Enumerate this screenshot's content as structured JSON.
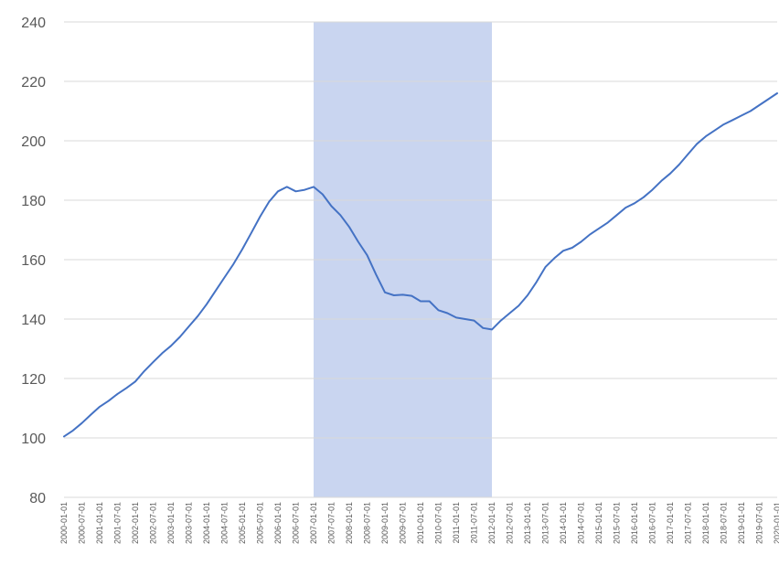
{
  "chart_data": {
    "type": "line",
    "title": "",
    "xlabel": "",
    "ylabel": "",
    "ylim": [
      80,
      240
    ],
    "y_ticks": [
      80,
      100,
      120,
      140,
      160,
      180,
      200,
      220,
      240
    ],
    "grid": true,
    "legend": "none",
    "colors": {
      "line": "#4472c4",
      "shade": "#c9d5f0",
      "grid": "#d9d9d9",
      "text": "#595959"
    },
    "x_tick_labels": [
      "2000-01-01",
      "2000-07-01",
      "2001-01-01",
      "2001-07-01",
      "2002-01-01",
      "2002-07-01",
      "2003-01-01",
      "2003-07-01",
      "2004-01-01",
      "2004-07-01",
      "2005-01-01",
      "2005-07-01",
      "2006-01-01",
      "2006-07-01",
      "2007-01-01",
      "2007-07-01",
      "2008-01-01",
      "2008-07-01",
      "2009-01-01",
      "2009-07-01",
      "2010-01-01",
      "2010-07-01",
      "2011-01-01",
      "2011-07-01",
      "2012-01-01",
      "2012-07-01",
      "2013-01-01",
      "2013-07-01",
      "2014-01-01",
      "2014-07-01",
      "2015-01-01",
      "2015-07-01",
      "2016-01-01",
      "2016-07-01",
      "2017-01-01",
      "2017-07-01",
      "2018-01-01",
      "2018-07-01",
      "2019-01-01",
      "2019-07-01",
      "2020-01-01"
    ],
    "shaded_region": {
      "start": "2007-01-01",
      "end": "2012-01-01"
    },
    "series": [
      {
        "x": [
          "2000-01-01",
          "2000-04-01",
          "2000-07-01",
          "2000-10-01",
          "2001-01-01",
          "2001-04-01",
          "2001-07-01",
          "2001-10-01",
          "2002-01-01",
          "2002-04-01",
          "2002-07-01",
          "2002-10-01",
          "2003-01-01",
          "2003-04-01",
          "2003-07-01",
          "2003-10-01",
          "2004-01-01",
          "2004-04-01",
          "2004-07-01",
          "2004-10-01",
          "2005-01-01",
          "2005-04-01",
          "2005-07-01",
          "2005-10-01",
          "2006-01-01",
          "2006-04-01",
          "2006-07-01",
          "2006-10-01",
          "2007-01-01",
          "2007-04-01",
          "2007-07-01",
          "2007-10-01",
          "2008-01-01",
          "2008-04-01",
          "2008-07-01",
          "2008-10-01",
          "2009-01-01",
          "2009-04-01",
          "2009-07-01",
          "2009-10-01",
          "2010-01-01",
          "2010-04-01",
          "2010-07-01",
          "2010-10-01",
          "2011-01-01",
          "2011-04-01",
          "2011-07-01",
          "2011-10-01",
          "2012-01-01",
          "2012-04-01",
          "2012-07-01",
          "2012-10-01",
          "2013-01-01",
          "2013-04-01",
          "2013-07-01",
          "2013-10-01",
          "2014-01-01",
          "2014-04-01",
          "2014-07-01",
          "2014-10-01",
          "2015-01-01",
          "2015-04-01",
          "2015-07-01",
          "2015-10-01",
          "2016-01-01",
          "2016-04-01",
          "2016-07-01",
          "2016-10-01",
          "2017-01-01",
          "2017-04-01",
          "2017-07-01",
          "2017-10-01",
          "2018-01-01",
          "2018-04-01",
          "2018-07-01",
          "2018-10-01",
          "2019-01-01",
          "2019-04-01",
          "2019-07-01",
          "2019-10-01",
          "2020-01-01"
        ],
        "values": [
          100.5,
          102.5,
          105,
          107.8,
          110.5,
          112.5,
          114.8,
          116.8,
          119,
          122.5,
          125.5,
          128.5,
          131,
          134,
          137.5,
          141,
          145,
          149.5,
          154,
          158.5,
          163.5,
          169,
          174.5,
          179.5,
          183,
          184.5,
          183,
          183.5,
          184.5,
          182,
          178,
          175,
          171,
          166,
          161.5,
          155,
          149,
          148,
          148.2,
          147.8,
          146,
          146,
          143,
          142,
          140.5,
          140,
          139.5,
          137,
          136.5,
          139.5,
          142,
          144.5,
          148,
          152.5,
          157.5,
          160.5,
          163,
          164,
          166,
          168.5,
          170.5,
          172.5,
          175,
          177.5,
          179,
          181,
          183.5,
          186.5,
          189,
          192,
          195.5,
          199,
          201.5,
          203.5,
          205.5,
          207,
          208.5,
          210,
          212,
          214,
          216
        ]
      }
    ]
  }
}
